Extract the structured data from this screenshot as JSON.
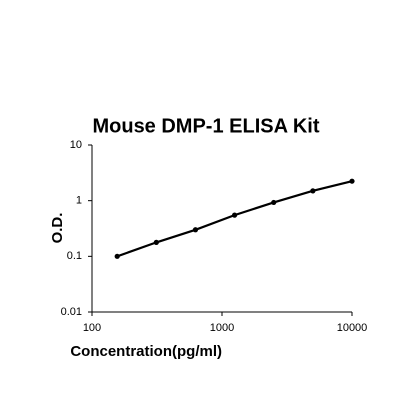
{
  "chart_data": {
    "type": "line",
    "title": "Mouse DMP-1 ELISA Kit",
    "x_label": "Concentration(pg/ml)",
    "y_label": "O.D.",
    "x": [
      156.25,
      312.5,
      625,
      1250,
      2500,
      5000,
      10000
    ],
    "series": [
      {
        "name": "O.D.",
        "color": "#000000",
        "values": [
          0.1,
          0.178,
          0.3,
          0.55,
          0.93,
          1.5,
          2.24
        ]
      }
    ],
    "x_log": true,
    "y_log": true,
    "xlim": [
      100,
      10000
    ],
    "xticks": [
      100,
      1000,
      10000
    ],
    "ylim": [
      0.01,
      10
    ],
    "yticks": [
      0.01,
      0.1,
      1,
      10
    ],
    "grid": false
  }
}
